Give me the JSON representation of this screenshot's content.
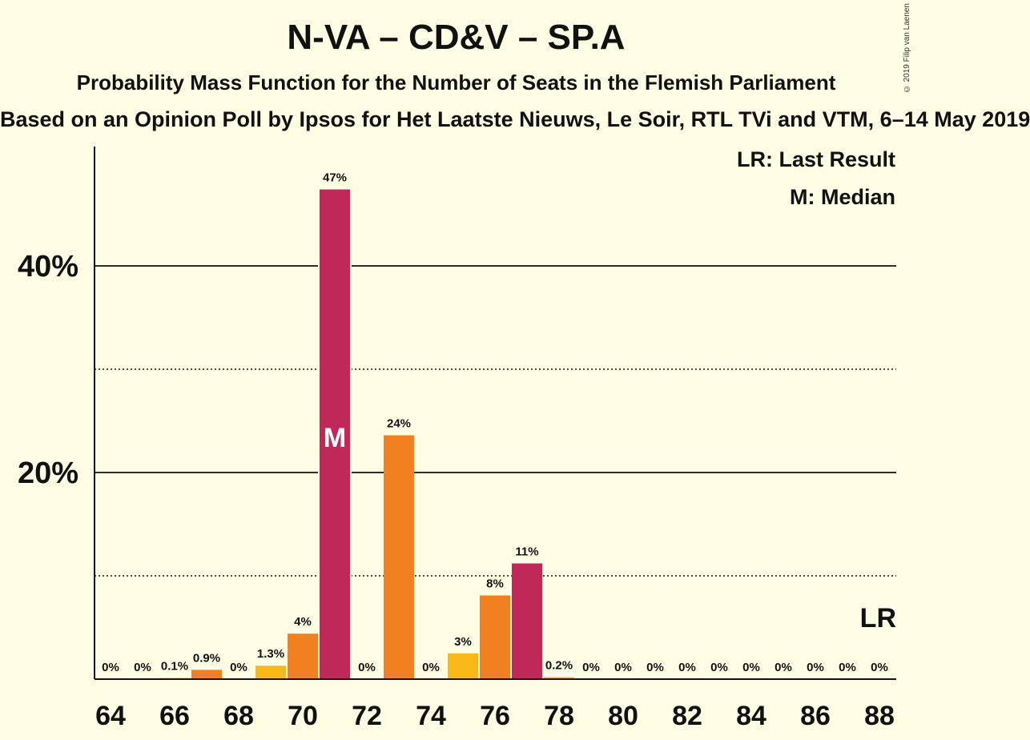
{
  "title": "N-VA – CD&V – SP.A",
  "subtitle": "Probability Mass Function for the Number of Seats in the Flemish Parliament",
  "source": "Based on an Opinion Poll by Ipsos for Het Laatste Nieuws, Le Soir, RTL TVi and VTM, 6–14 May 2019",
  "copyright": "© 2019 Filip van Laenen",
  "legend": {
    "last_result": "LR: Last Result",
    "median": "M: Median"
  },
  "colors": {
    "background": "#fffde3",
    "crimson": "#c0285a",
    "orange": "#f08020",
    "yellow": "#f8b818",
    "axis": "#111111"
  },
  "chart_data": {
    "type": "bar",
    "x": [
      64,
      65,
      66,
      67,
      68,
      69,
      70,
      71,
      72,
      73,
      74,
      75,
      76,
      77,
      78,
      79,
      80,
      81,
      82,
      83,
      84,
      85,
      86,
      87,
      88
    ],
    "values": [
      0,
      0,
      0.1,
      0.9,
      0,
      1.3,
      4.4,
      47.4,
      0,
      23.6,
      0,
      2.5,
      8.1,
      11.2,
      0.2,
      0,
      0,
      0,
      0,
      0,
      0,
      0,
      0,
      0,
      0
    ],
    "labels": [
      "0%",
      "0%",
      "0.1%",
      "0.9%",
      "0%",
      "1.3%",
      "4%",
      "47%",
      "0%",
      "24%",
      "0%",
      "3%",
      "8%",
      "11%",
      "0.2%",
      "0%",
      "0%",
      "0%",
      "0%",
      "0%",
      "0%",
      "0%",
      "0%",
      "0%",
      "0%"
    ],
    "bar_colors": [
      "yellow",
      "crimson",
      "orange",
      "orange",
      "yellow",
      "yellow",
      "orange",
      "crimson",
      "yellow",
      "orange",
      "yellow",
      "yellow",
      "orange",
      "crimson",
      "yellow",
      "yellow",
      "yellow",
      "yellow",
      "yellow",
      "yellow",
      "yellow",
      "yellow",
      "yellow",
      "yellow",
      "yellow"
    ],
    "xticks": [
      "64",
      "66",
      "68",
      "70",
      "72",
      "74",
      "76",
      "78",
      "80",
      "82",
      "84",
      "86",
      "88"
    ],
    "yticks": [
      {
        "value": 20,
        "label": "20%"
      },
      {
        "value": 40,
        "label": "40%"
      }
    ],
    "minor_gridlines": [
      10,
      30
    ],
    "ylim": [
      0,
      51.5
    ],
    "median_seat": 71,
    "median_marker": "M",
    "last_result_seat": 88,
    "last_result_marker": "LR"
  }
}
